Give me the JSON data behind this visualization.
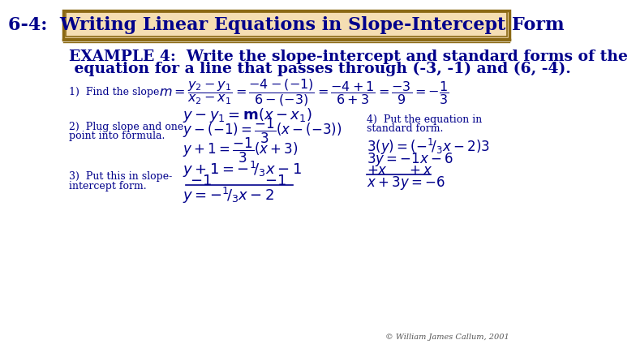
{
  "title": "6-4:  Writing Linear Equations in Slope-Intercept Form",
  "title_color": "#00008B",
  "title_bg": "#F5DEB3",
  "title_border": "#8B6914",
  "bg_color": "#FFFFFF",
  "text_color": "#00008B",
  "example_line1": "EXAMPLE 4:  Write the slope-intercept and standard forms of the",
  "example_line2": " equation for a line that passes through (-3, -1) and (6, -4).",
  "footer": "© William James Callum, 2001"
}
